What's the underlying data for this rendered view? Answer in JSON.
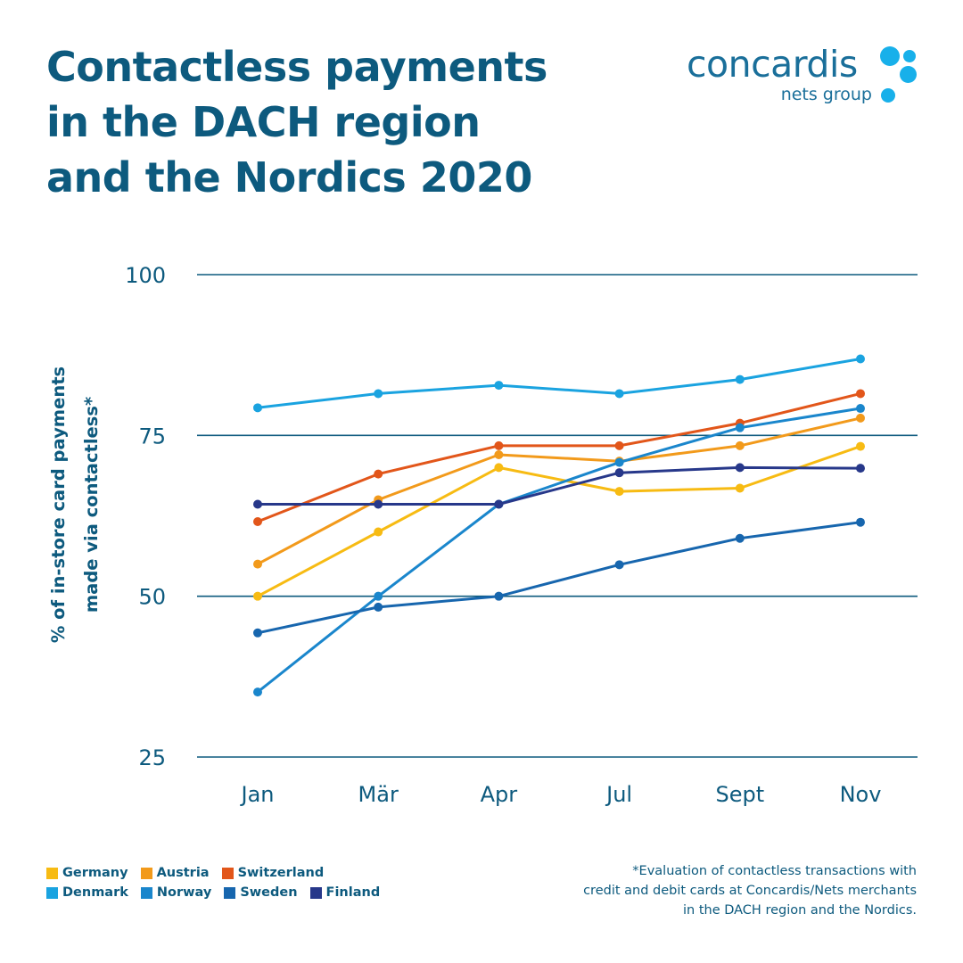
{
  "title_lines": [
    "Contactless payments",
    "in the DACH region",
    "and the Nordics 2020"
  ],
  "logo": {
    "name": "concardis",
    "sub": "nets group",
    "icon": "dot-cluster-icon",
    "color": "#18b0ea"
  },
  "footnote_lines": [
    "*Evaluation of contactless transactions with",
    "credit and debit cards at Concardis/Nets merchants",
    "in the DACH region and the Nordics."
  ],
  "chart_data": {
    "type": "line",
    "title": "Contactless payments in the DACH region and the Nordics 2020",
    "ylabel": [
      "% of in-store card payments",
      "made via contactless*"
    ],
    "xlabel": "",
    "categories": [
      "Jan",
      "Mär",
      "Apr",
      "Jul",
      "Sept",
      "Nov"
    ],
    "ylim": [
      25,
      100
    ],
    "yticks": [
      25,
      50,
      75,
      100
    ],
    "grid": "horizontal",
    "legend_position": "bottom-left",
    "series": [
      {
        "name": "Germany",
        "color": "#f7bb13",
        "values": [
          50,
          60,
          70,
          66.3,
          66.8,
          73.3
        ]
      },
      {
        "name": "Austria",
        "color": "#f29a1b",
        "values": [
          55,
          65,
          72,
          71,
          73.4,
          77.7
        ]
      },
      {
        "name": "Switzerland",
        "color": "#e2561a",
        "values": [
          61.6,
          69,
          73.4,
          73.4,
          76.9,
          81.5
        ]
      },
      {
        "name": "Denmark",
        "color": "#1aa3e0",
        "values": [
          79.3,
          81.5,
          82.8,
          81.5,
          83.7,
          86.9
        ]
      },
      {
        "name": "Norway",
        "color": "#1a86cc",
        "values": [
          35.1,
          50,
          64.3,
          70.8,
          76.2,
          79.2
        ]
      },
      {
        "name": "Sweden",
        "color": "#1766ae",
        "values": [
          44.3,
          48.3,
          50,
          54.9,
          59,
          61.5
        ]
      },
      {
        "name": "Finland",
        "color": "#27388a",
        "values": [
          64.3,
          64.3,
          64.3,
          69.2,
          70,
          69.9
        ]
      }
    ]
  }
}
